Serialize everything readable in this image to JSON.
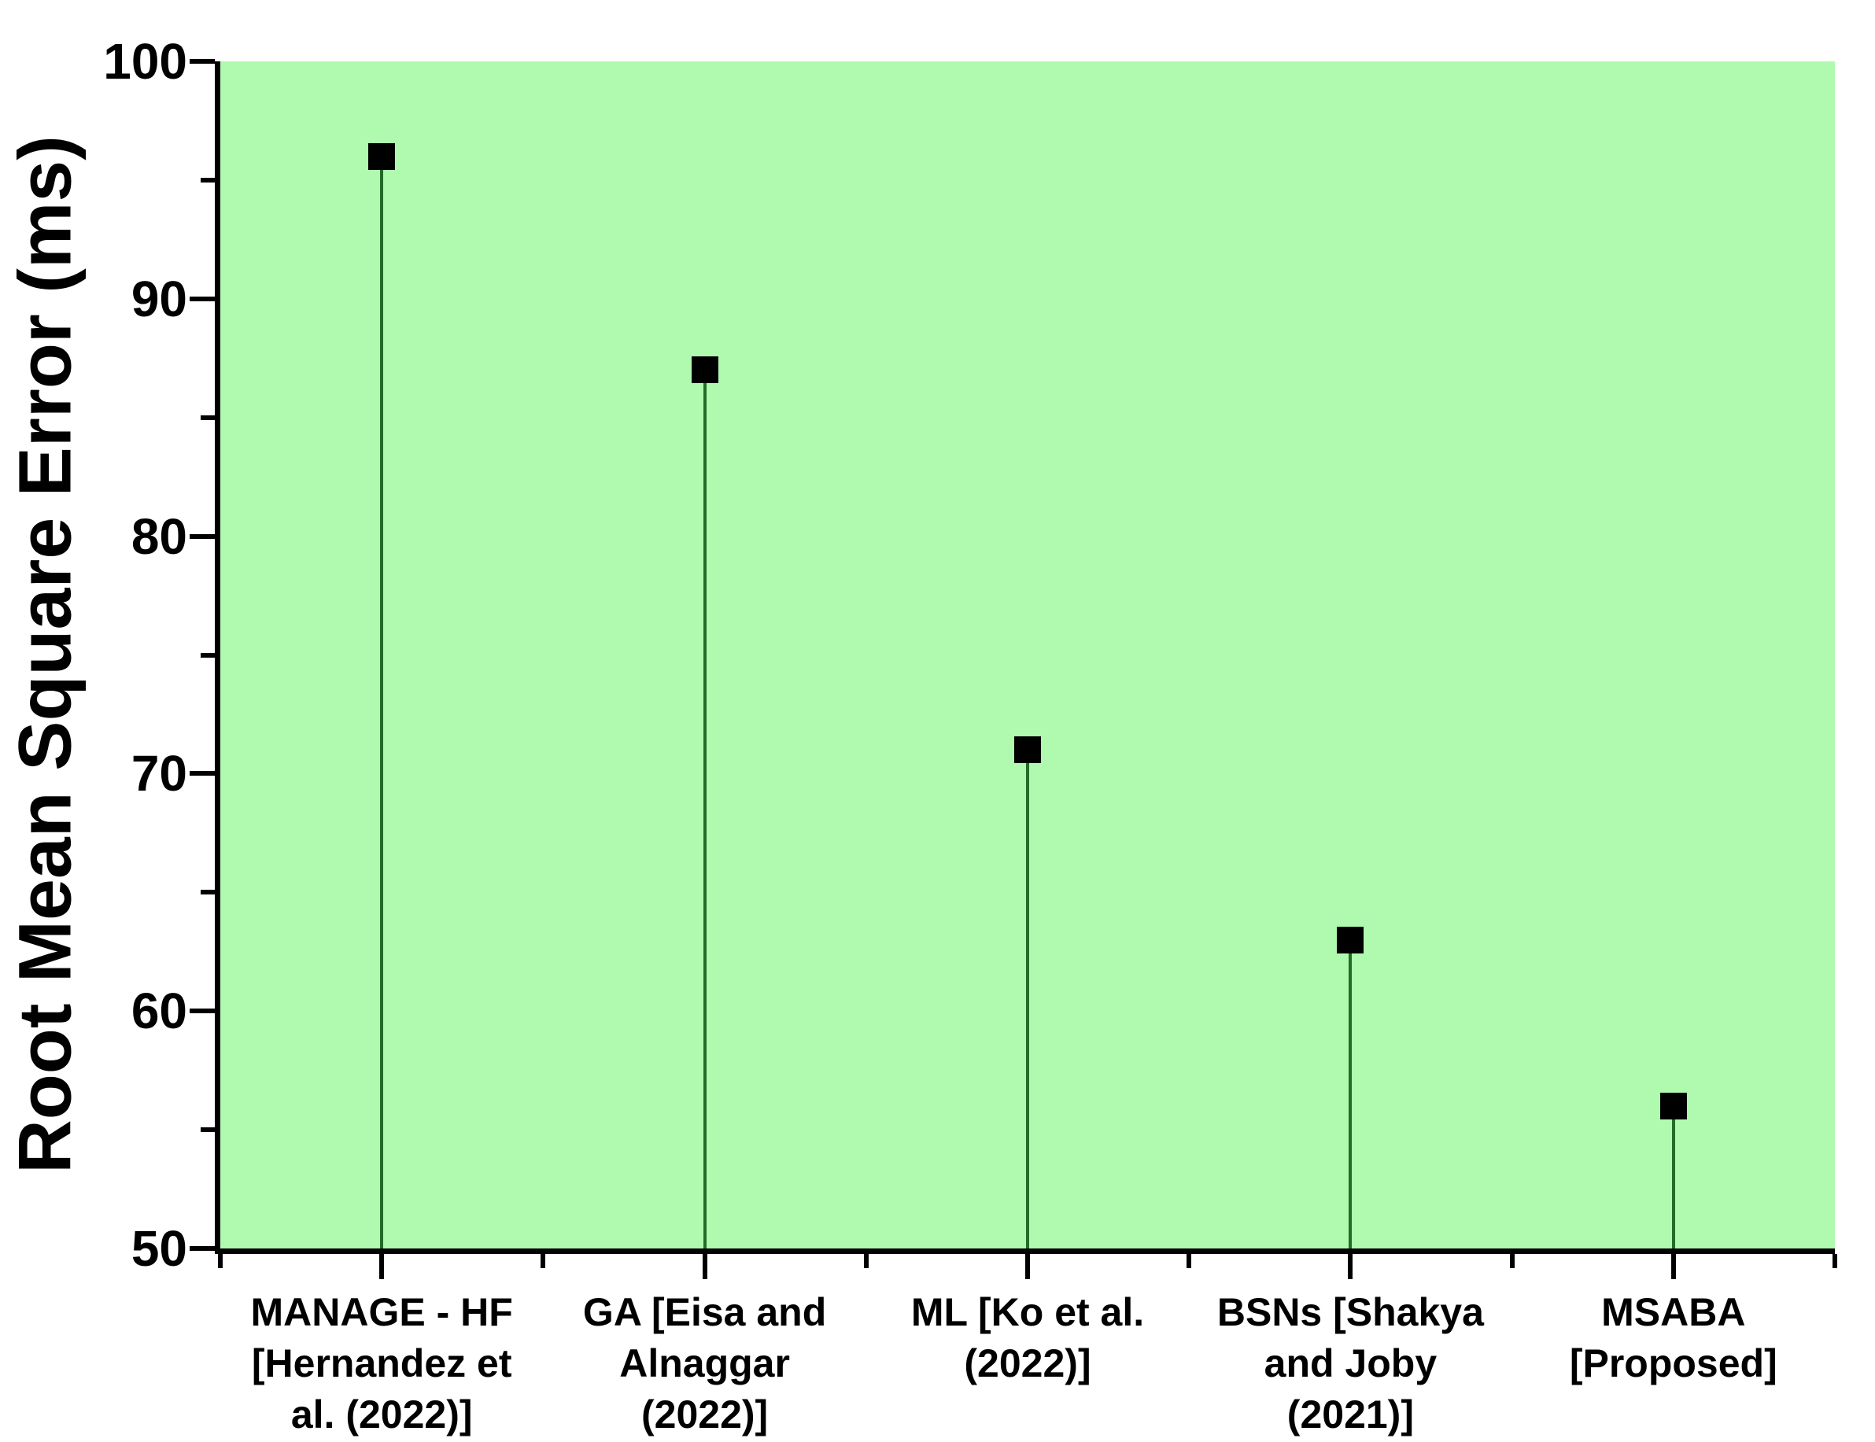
{
  "chart_data": {
    "type": "scatter",
    "subtype": "stem-drop-lines",
    "title": "",
    "ylabel": "Root Mean Square Error (ms)",
    "xlabel": "",
    "ylim": [
      50,
      100
    ],
    "yticks_major": [
      50,
      60,
      70,
      80,
      90,
      100
    ],
    "yticks_minor": [
      55,
      65,
      75,
      85,
      95
    ],
    "grid": "off",
    "legend": "none",
    "categories": [
      "MANAGE - HF\n[Hernandez et\nal. (2022)]",
      "GA [Eisa and\nAlnaggar\n(2022)]",
      "ML [Ko et al.\n(2022)]",
      "BSNs [Shakya\nand Joby\n(2021)]",
      "MSABA\n[Proposed]"
    ],
    "values": [
      96,
      87,
      71,
      63,
      56
    ],
    "marker": "filled-square",
    "colors": {
      "plot_background": "#B0FAB0",
      "stem": "#226B28",
      "marker": "#000000",
      "axis": "#000000",
      "text": "#000000",
      "page_background": "#FFFFFF"
    }
  }
}
